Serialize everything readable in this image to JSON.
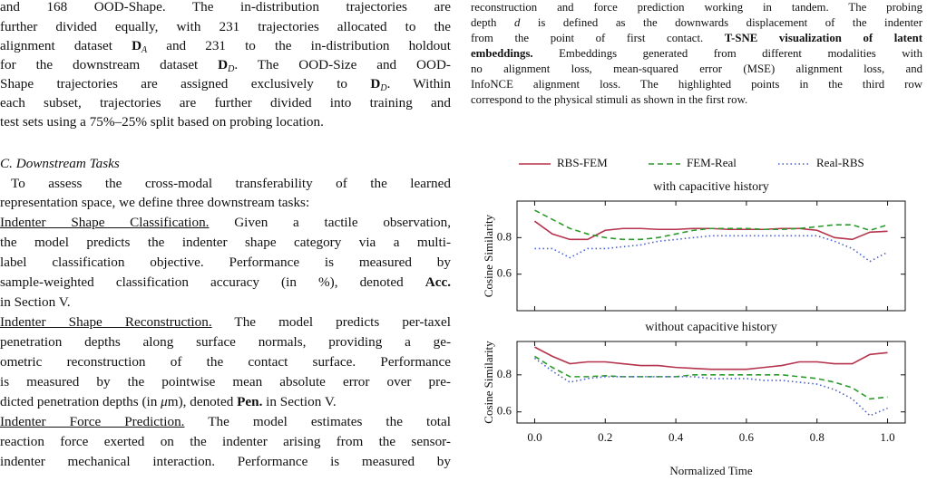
{
  "left": {
    "lines_top": [
      "and 168 OOD-Shape. The in-distribution trajectories are",
      "further divided equally, with 231 trajectories allocated to the",
      [
        "alignment dataset ",
        "D",
        "A",
        " and 231 to the in-distribution holdout"
      ],
      [
        "for the downstream dataset ",
        "D",
        "D",
        ". The OOD-Size and OOD-"
      ],
      [
        "Shape trajectories are assigned exclusively to ",
        "D",
        "D",
        ". Within"
      ],
      "each subset, trajectories are further divided into training and",
      "test sets using a 75%–25% split based on probing location."
    ],
    "heading": "C. Downstream Tasks",
    "lines": [
      "To assess the cross-modal transferability of the learned",
      "representation space, we define three downstream tasks:",
      [
        "Indenter Shape Classification.",
        " Given a tactile observation,"
      ],
      "the model predicts the indenter shape category via a multi-",
      "label classification objective. Performance is measured by",
      [
        "sample-weighted classification accuracy (in %), denoted ",
        "Acc."
      ],
      "in Section V.",
      [
        "Indenter Shape Reconstruction.",
        " The model predicts per-taxel"
      ],
      "penetration depths along surface normals, providing a ge-",
      "ometric reconstruction of the contact surface. Performance",
      "is measured by the pointwise mean absolute error over pre-",
      [
        "dicted penetration depths (in ",
        "μ",
        "m), denoted ",
        "Pen.",
        " in Section V."
      ],
      [
        "Indenter Force Prediction.",
        " The model estimates the total"
      ],
      "reaction force exerted on the indenter arising from the sensor-",
      "indenter mechanical interaction. Performance is measured by"
    ]
  },
  "right": {
    "caption": [
      "reconstruction and force prediction working in tandem. The probing",
      [
        "depth ",
        "d",
        " is defined as the downwards displacement of the indenter"
      ],
      [
        "from the point of first contact. ",
        "T-SNE visualization of latent"
      ],
      [
        "embeddings.",
        " Embeddings generated from different modalities with"
      ],
      "no alignment loss, mean-squared error (MSE) alignment loss, and",
      "InfoNCE alignment loss. The highlighted points in the third row",
      "correspond to the physical stimuli as shown in the first row."
    ]
  },
  "chart_data": [
    {
      "type": "line",
      "title": "with capacitive history",
      "ylabel": "Cosine Similarity",
      "x": [
        0,
        0.05,
        0.1,
        0.15,
        0.2,
        0.25,
        0.3,
        0.35,
        0.4,
        0.45,
        0.5,
        0.55,
        0.6,
        0.65,
        0.7,
        0.75,
        0.8,
        0.85,
        0.9,
        0.95,
        1.0
      ],
      "xlim": [
        -0.05,
        1.05
      ],
      "ylim": [
        0.4,
        1.0
      ],
      "yticks": [
        0.6,
        0.8
      ],
      "series": [
        {
          "name": "RBS-FEM",
          "color": "#b5334c",
          "linestyle": "solid",
          "values": [
            0.89,
            0.82,
            0.79,
            0.79,
            0.84,
            0.85,
            0.85,
            0.845,
            0.845,
            0.85,
            0.85,
            0.845,
            0.845,
            0.845,
            0.85,
            0.85,
            0.84,
            0.8,
            0.79,
            0.83,
            0.835
          ]
        },
        {
          "name": "FEM-Real",
          "color": "#2a9a2a",
          "linestyle": "dashed",
          "values": [
            0.95,
            0.9,
            0.85,
            0.82,
            0.8,
            0.79,
            0.79,
            0.8,
            0.82,
            0.84,
            0.85,
            0.85,
            0.85,
            0.845,
            0.845,
            0.85,
            0.86,
            0.87,
            0.87,
            0.84,
            0.87
          ]
        },
        {
          "name": "Real-RBS",
          "color": "#4a5fd0",
          "linestyle": "dotted",
          "values": [
            0.74,
            0.74,
            0.69,
            0.74,
            0.74,
            0.75,
            0.76,
            0.78,
            0.79,
            0.8,
            0.81,
            0.81,
            0.81,
            0.81,
            0.81,
            0.81,
            0.81,
            0.78,
            0.74,
            0.67,
            0.72
          ]
        }
      ]
    },
    {
      "type": "line",
      "title": "without capacitive history",
      "ylabel": "Cosine Similarity",
      "xlabel": "Normalized Time",
      "x": [
        0,
        0.05,
        0.1,
        0.15,
        0.2,
        0.25,
        0.3,
        0.35,
        0.4,
        0.45,
        0.5,
        0.55,
        0.6,
        0.65,
        0.7,
        0.75,
        0.8,
        0.85,
        0.9,
        0.95,
        1.0
      ],
      "xlim": [
        -0.05,
        1.05
      ],
      "ylim": [
        0.54,
        0.98
      ],
      "yticks": [
        0.6,
        0.8
      ],
      "xticks": [
        {
          "value": 0,
          "label": "0.0"
        },
        0.2,
        0.4,
        0.6,
        0.8,
        {
          "value": 1,
          "label": "1.0"
        }
      ],
      "series": [
        {
          "color": "#b5334c",
          "linestyle": "solid",
          "values": [
            0.95,
            0.9,
            0.86,
            0.87,
            0.87,
            0.86,
            0.85,
            0.85,
            0.84,
            0.835,
            0.83,
            0.83,
            0.83,
            0.84,
            0.85,
            0.87,
            0.87,
            0.86,
            0.86,
            0.91,
            0.92
          ]
        },
        {
          "color": "#2a9a2a",
          "linestyle": "dashed",
          "values": [
            0.9,
            0.84,
            0.79,
            0.79,
            0.795,
            0.79,
            0.79,
            0.79,
            0.79,
            0.8,
            0.8,
            0.8,
            0.8,
            0.8,
            0.8,
            0.79,
            0.78,
            0.76,
            0.73,
            0.67,
            0.68
          ]
        },
        {
          "color": "#4a5fd0",
          "linestyle": "dotted",
          "values": [
            0.89,
            0.82,
            0.76,
            0.78,
            0.79,
            0.79,
            0.79,
            0.79,
            0.79,
            0.79,
            0.78,
            0.78,
            0.78,
            0.77,
            0.77,
            0.76,
            0.75,
            0.72,
            0.67,
            0.58,
            0.62
          ]
        }
      ]
    }
  ]
}
